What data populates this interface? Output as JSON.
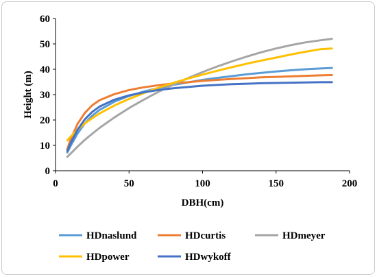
{
  "chart_data": {
    "type": "line",
    "xlabel": "DBH(cm)",
    "ylabel": "Height (m)",
    "xlim": [
      0,
      200
    ],
    "ylim": [
      0,
      60
    ],
    "xticks": [
      0,
      50,
      100,
      150,
      200
    ],
    "yticks": [
      0,
      10,
      20,
      30,
      40,
      50,
      60
    ],
    "grid": false,
    "legend_position": "bottom",
    "x": [
      8,
      10,
      15,
      20,
      25,
      30,
      40,
      50,
      60,
      70,
      80,
      90,
      100,
      110,
      120,
      130,
      140,
      150,
      160,
      170,
      180,
      188
    ],
    "series": [
      {
        "name": "HDnaslund",
        "color": "#5B9BD5",
        "values": [
          7.2,
          9.5,
          14.7,
          18.7,
          21.7,
          24.0,
          27.2,
          29.5,
          31.2,
          32.6,
          33.8,
          34.8,
          35.8,
          36.6,
          37.3,
          38.0,
          38.6,
          39.1,
          39.6,
          40.0,
          40.3,
          40.5
        ]
      },
      {
        "name": "HDcurtis",
        "color": "#ED7D31",
        "values": [
          8.5,
          12.0,
          18.5,
          22.8,
          25.8,
          27.8,
          30.2,
          31.8,
          32.9,
          33.7,
          34.4,
          34.9,
          35.4,
          35.8,
          36.2,
          36.5,
          36.8,
          37.0,
          37.2,
          37.4,
          37.6,
          37.7
        ]
      },
      {
        "name": "HDmeyer",
        "color": "#A5A5A5",
        "values": [
          5.5,
          6.6,
          9.5,
          12.2,
          14.6,
          16.9,
          21.0,
          24.7,
          28.0,
          31.1,
          33.9,
          36.5,
          38.9,
          41.1,
          43.1,
          45.0,
          46.7,
          48.2,
          49.5,
          50.6,
          51.4,
          52.0
        ]
      },
      {
        "name": "HDpower",
        "color": "#FFC000",
        "values": [
          12.0,
          13.3,
          16.2,
          18.7,
          20.7,
          22.6,
          25.7,
          28.3,
          30.6,
          32.7,
          34.6,
          36.3,
          37.9,
          39.4,
          40.8,
          42.2,
          43.4,
          44.6,
          45.8,
          46.9,
          47.9,
          48.2
        ]
      },
      {
        "name": "HDwykoff",
        "color": "#4472C4",
        "values": [
          7.8,
          10.5,
          16.2,
          20.3,
          23.2,
          25.3,
          28.0,
          29.7,
          30.9,
          31.8,
          32.5,
          33.0,
          33.5,
          33.8,
          34.1,
          34.3,
          34.5,
          34.6,
          34.7,
          34.8,
          34.9,
          34.9
        ]
      }
    ]
  }
}
